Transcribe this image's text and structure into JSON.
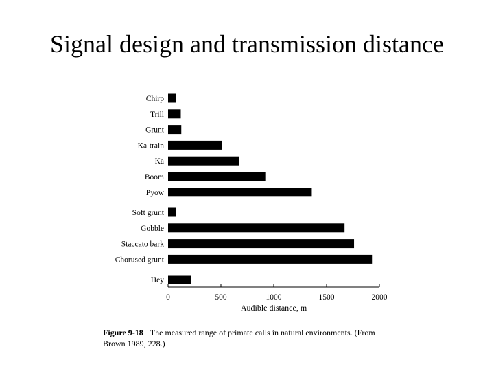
{
  "slide": {
    "title": "Signal design and transmission distance"
  },
  "caption": {
    "label": "Figure 9-18",
    "text": "The measured range of primate calls in natural environments. (From Brown 1989, 228.)"
  },
  "chart_data": {
    "type": "bar",
    "orientation": "horizontal",
    "categories": [
      "Chirp",
      "Trill",
      "Grunt",
      "Ka-train",
      "Ka",
      "Boom",
      "Pyow",
      "Soft grunt",
      "Gobble",
      "Staccato bark",
      "Chorused grunt",
      "Hey"
    ],
    "groups": [
      [
        0,
        1,
        2,
        3,
        4,
        5,
        6
      ],
      [
        7,
        8,
        9,
        10
      ],
      [
        11
      ]
    ],
    "values": [
      75,
      120,
      125,
      510,
      670,
      920,
      1360,
      75,
      1670,
      1760,
      1930,
      215
    ],
    "xlabel": "Audible distance, m",
    "xlim": [
      0,
      2000
    ],
    "xticks": [
      0,
      500,
      1000,
      1500,
      2000
    ],
    "bar_color": "#000000",
    "grid": false
  }
}
